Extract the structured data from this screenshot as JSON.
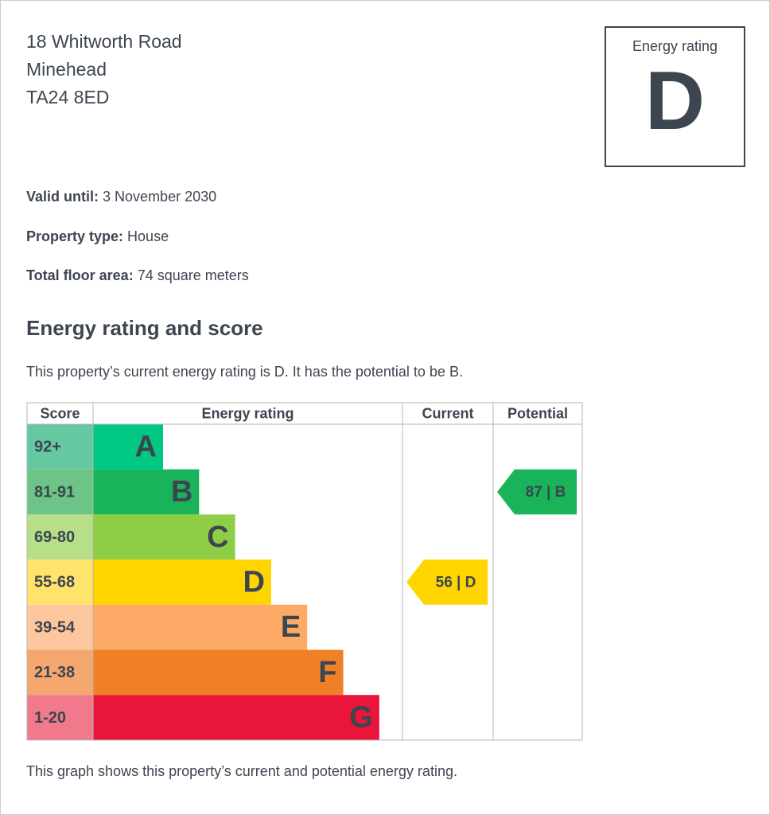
{
  "address": [
    "18 Whitworth Road",
    "Minehead",
    "TA24 8ED"
  ],
  "rating_box": {
    "title": "Energy rating",
    "letter": "D"
  },
  "details": [
    {
      "label": "Valid until:",
      "value": "3 November 2030"
    },
    {
      "label": "Property type:",
      "value": "House"
    },
    {
      "label": "Total floor area:",
      "value": "74 square meters"
    }
  ],
  "heading": "Energy rating and score",
  "summary": "This property’s current energy rating is D. It has the potential to be B.",
  "graph": {
    "headers": [
      "Score",
      "Energy rating",
      "Current",
      "Potential"
    ],
    "rows": [
      {
        "score": "92+",
        "letter": "A",
        "color": "#00c781",
        "score_color": "#64c8a0"
      },
      {
        "score": "81-91",
        "letter": "B",
        "color": "#19b459",
        "score_color": "#6cc486"
      },
      {
        "score": "69-80",
        "letter": "C",
        "color": "#8dce46",
        "score_color": "#b6df88"
      },
      {
        "score": "55-68",
        "letter": "D",
        "color": "#ffd500",
        "score_color": "#ffe36a"
      },
      {
        "score": "39-54",
        "letter": "E",
        "color": "#fcaa65",
        "score_color": "#fdc69d"
      },
      {
        "score": "21-38",
        "letter": "F",
        "color": "#ef8023",
        "score_color": "#f4a76e"
      },
      {
        "score": "1-20",
        "letter": "G",
        "color": "#e9153b",
        "score_color": "#f07a8c"
      }
    ],
    "current": {
      "label": "56 | D"
    },
    "potential": {
      "label": "87 | B"
    }
  },
  "footer": "This graph shows this property’s current and potential energy rating."
}
